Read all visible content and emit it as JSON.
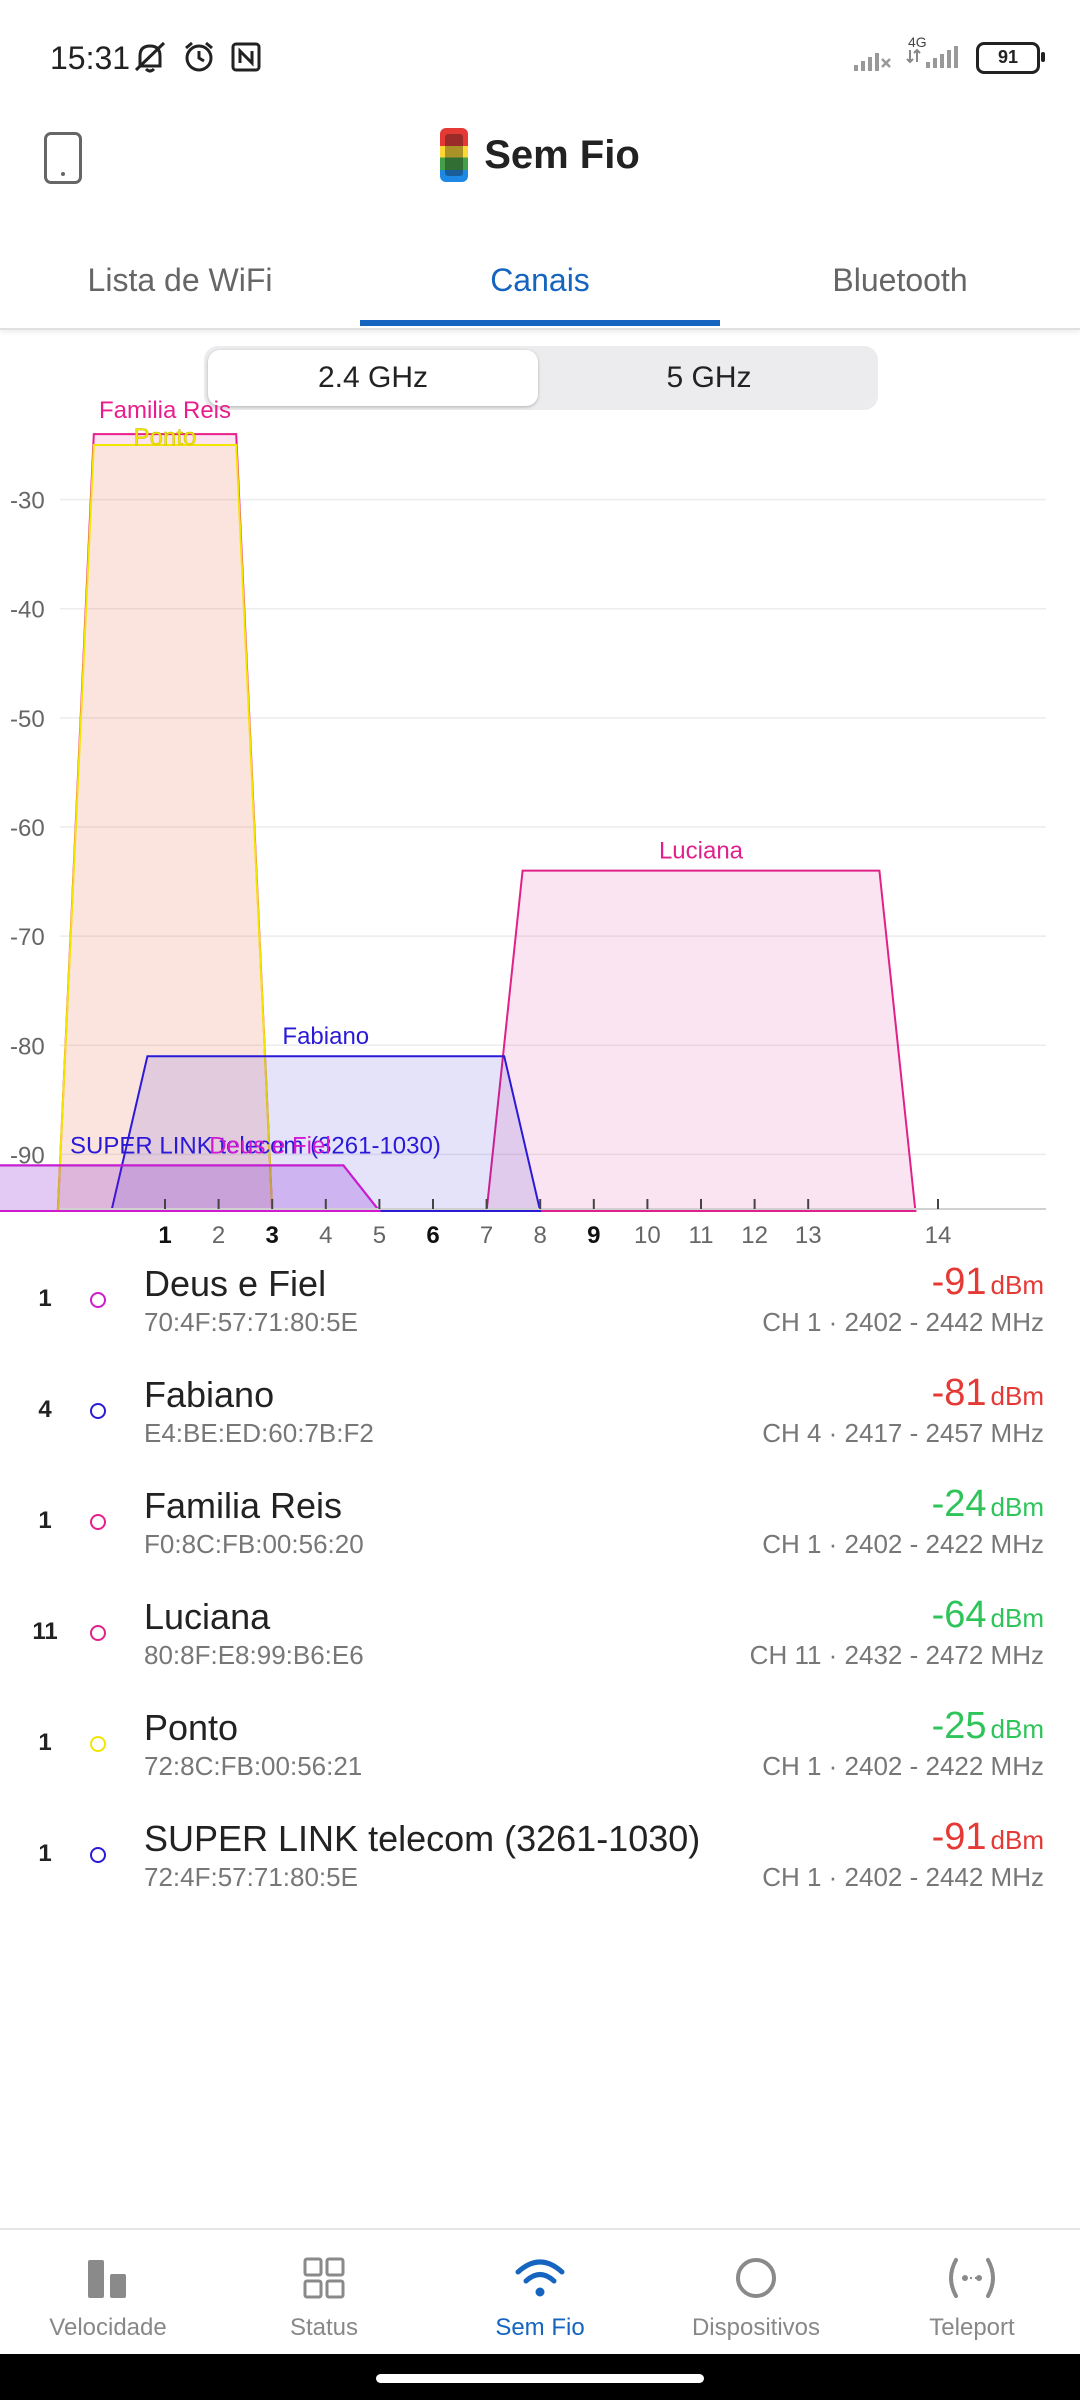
{
  "status_bar": {
    "time": "15:31",
    "network": "4G",
    "battery": "91"
  },
  "header": {
    "title": "Sem Fio"
  },
  "tabs": [
    {
      "label": "Lista de WiFi",
      "active": false
    },
    {
      "label": "Canais",
      "active": true
    },
    {
      "label": "Bluetooth",
      "active": false
    }
  ],
  "band_toggle": {
    "options": [
      "2.4 GHz",
      "5 GHz"
    ],
    "selected": "2.4 GHz"
  },
  "chart_data": {
    "type": "area",
    "title": "",
    "xlabel": "",
    "ylabel": "",
    "ylim": [
      -95,
      -25
    ],
    "y_ticks": [
      -30,
      -40,
      -50,
      -60,
      -70,
      -80,
      -90
    ],
    "x_ticks": [
      "1",
      "2",
      "3",
      "4",
      "5",
      "6",
      "7",
      "8",
      "9",
      "10",
      "11",
      "12",
      "13",
      "14"
    ],
    "x_ticks_bold": [
      "1",
      "3",
      "6",
      "9"
    ],
    "grid": true,
    "series": [
      {
        "name": "Familia Reis",
        "channel": 1,
        "width_mhz": 20,
        "signal": -24,
        "color": "#e91e8c"
      },
      {
        "name": "Ponto",
        "channel": 1,
        "width_mhz": 20,
        "signal": -25,
        "color": "#f2e600"
      },
      {
        "name": "Luciana",
        "channel": 11,
        "width_mhz": 40,
        "signal": -64,
        "color": "#e0218a"
      },
      {
        "name": "Fabiano",
        "channel": 4,
        "width_mhz": 40,
        "signal": -81,
        "color": "#2a1ad8"
      },
      {
        "name": "SUPER LINK telecom (3261-1030)",
        "channel": 1,
        "width_mhz": 40,
        "signal": -91,
        "color": "#2a1ad8"
      },
      {
        "name": "Deus e Fiel",
        "channel": 1,
        "width_mhz": 40,
        "signal": -91,
        "color": "#d01ad0"
      }
    ]
  },
  "networks": [
    {
      "channel": "1",
      "name": "Deus e Fiel",
      "mac": "70:4F:57:71:80:5E",
      "signal": "-91",
      "unit": "dBm",
      "freq": "CH 1 · 2402 - 2442 MHz",
      "dot_color": "#d01ad0",
      "signal_color": "#e53935"
    },
    {
      "channel": "4",
      "name": "Fabiano",
      "mac": "E4:BE:ED:60:7B:F2",
      "signal": "-81",
      "unit": "dBm",
      "freq": "CH 4 · 2417 - 2457 MHz",
      "dot_color": "#2a1ad8",
      "signal_color": "#e53935"
    },
    {
      "channel": "1",
      "name": "Familia Reis",
      "mac": "F0:8C:FB:00:56:20",
      "signal": "-24",
      "unit": "dBm",
      "freq": "CH 1 · 2402 - 2422 MHz",
      "dot_color": "#e91e8c",
      "signal_color": "#2ec45a"
    },
    {
      "channel": "11",
      "name": "Luciana",
      "mac": "80:8F:E8:99:B6:E6",
      "signal": "-64",
      "unit": "dBm",
      "freq": "CH 11 · 2432 - 2472 MHz",
      "dot_color": "#e0218a",
      "signal_color": "#2ec45a"
    },
    {
      "channel": "1",
      "name": "Ponto",
      "mac": "72:8C:FB:00:56:21",
      "signal": "-25",
      "unit": "dBm",
      "freq": "CH 1 · 2402 - 2422 MHz",
      "dot_color": "#f2e600",
      "signal_color": "#2ec45a"
    },
    {
      "channel": "1",
      "name": "SUPER LINK telecom (3261-1030)",
      "mac": "72:4F:57:71:80:5E",
      "signal": "-91",
      "unit": "dBm",
      "freq": "CH 1 · 2402 - 2442 MHz",
      "dot_color": "#2a1ad8",
      "signal_color": "#e53935"
    }
  ],
  "bottom_nav": [
    {
      "label": "Velocidade",
      "icon": "speed-bars-icon",
      "active": false
    },
    {
      "label": "Status",
      "icon": "grid-icon",
      "active": false
    },
    {
      "label": "Sem Fio",
      "icon": "wifi-icon",
      "active": true
    },
    {
      "label": "Dispositivos",
      "icon": "circle-icon",
      "active": false
    },
    {
      "label": "Teleport",
      "icon": "teleport-icon",
      "active": false
    }
  ]
}
